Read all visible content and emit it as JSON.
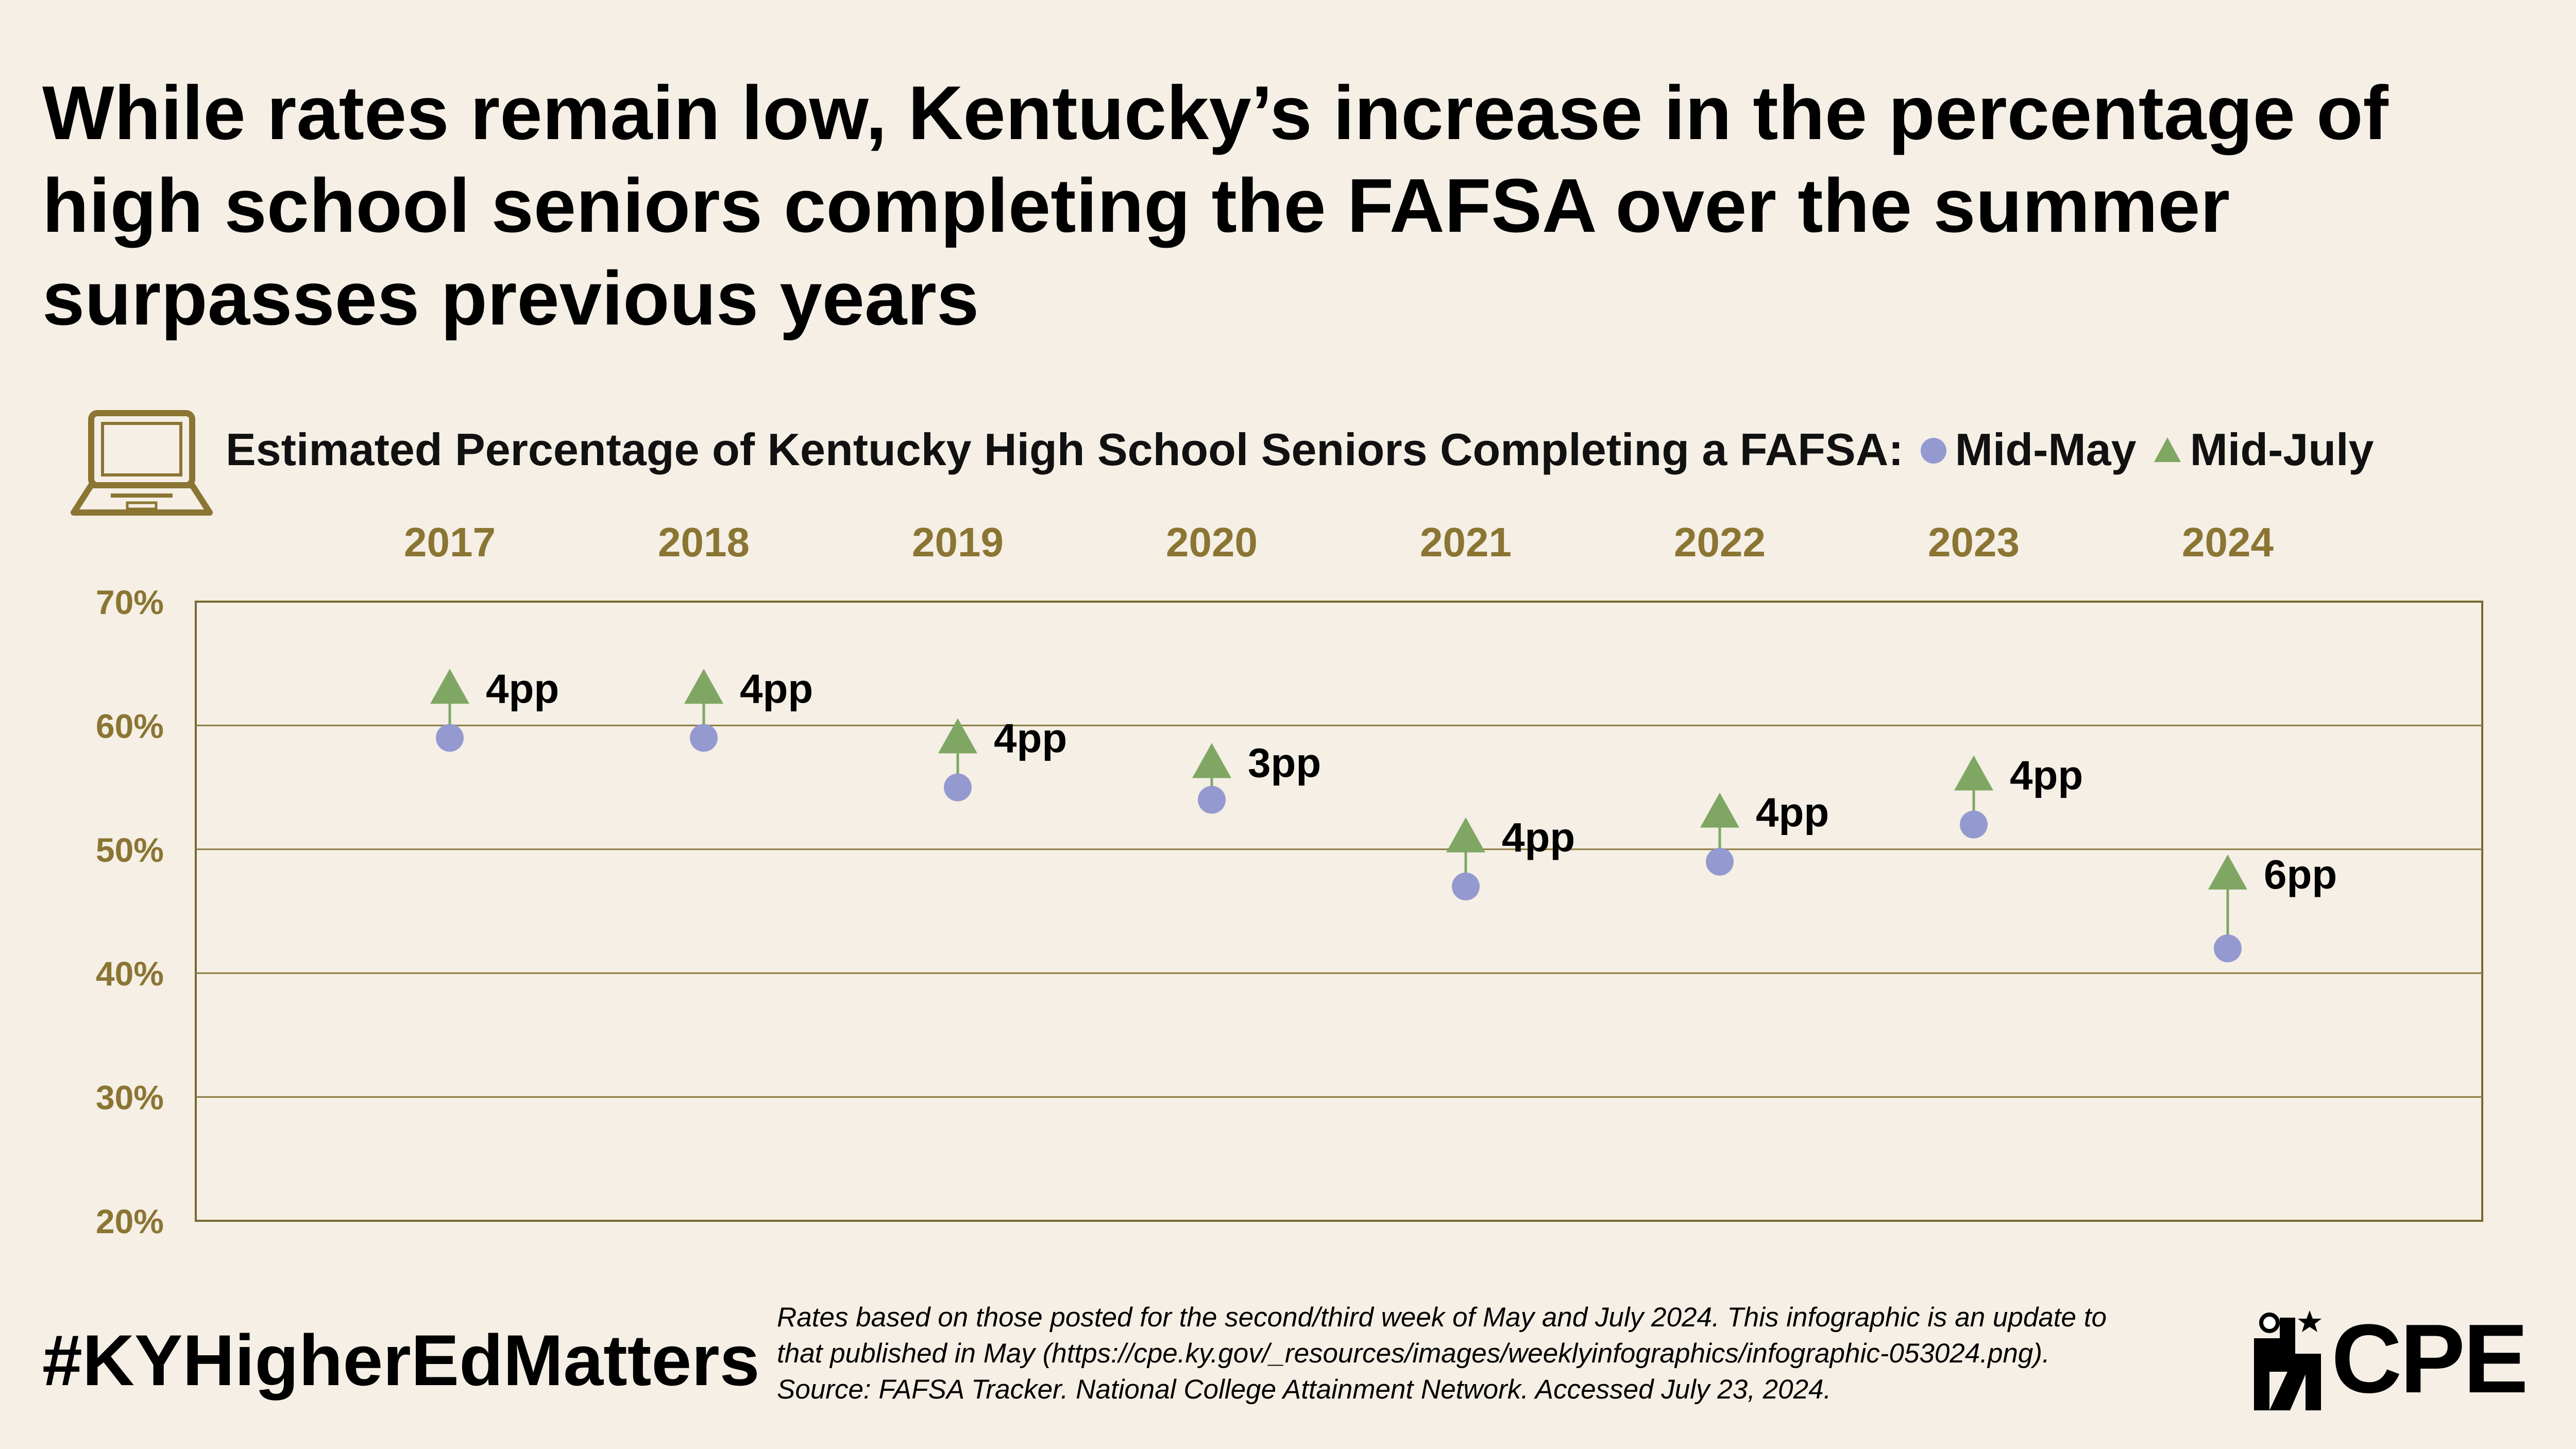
{
  "title": "While rates remain low, Kentucky’s increase in the percentage of high school seniors completing the FAFSA over the summer surpasses previous years",
  "icon": "laptop-icon",
  "colors": {
    "background": "#f5efe5",
    "axis": "#7a6a32",
    "tick_text": "#8b7533",
    "may": "#9499d0",
    "july": "#7fa763",
    "gridline": "#8b7a40"
  },
  "chart_data": {
    "type": "scatter",
    "title": "Estimated Percentage of Kentucky High School Seniors Completing a FAFSA:",
    "categories": [
      "2017",
      "2018",
      "2019",
      "2020",
      "2021",
      "2022",
      "2023",
      "2024"
    ],
    "series": [
      {
        "name": "Mid-May",
        "marker": "circle",
        "values": [
          59,
          59,
          55,
          54,
          47,
          49,
          52,
          42
        ]
      },
      {
        "name": "Mid-July",
        "marker": "triangle",
        "values": [
          63,
          63,
          59,
          57,
          51,
          53,
          56,
          48
        ]
      }
    ],
    "annotations": [
      "4pp",
      "4pp",
      "4pp",
      "3pp",
      "4pp",
      "4pp",
      "4pp",
      "6pp"
    ],
    "ylim": [
      20,
      70
    ],
    "yticks": [
      "20%",
      "30%",
      "40%",
      "50%",
      "60%",
      "70%"
    ],
    "grid": true,
    "legend_position": "top"
  },
  "hashtag": "#KYHigherEdMatters",
  "footnote": [
    "Rates based on those posted for the second/third week of May and July 2024. This infographic is an update to",
    "that published in May (https://cpe.ky.gov/_resources/images/weeklyinfographics/infographic-053024.png).",
    "Source: FAFSA Tracker. National College Attainment Network. Accessed July 23, 2024."
  ],
  "logo": {
    "text": "CPE",
    "icon": "cpe-star-figure-icon"
  }
}
